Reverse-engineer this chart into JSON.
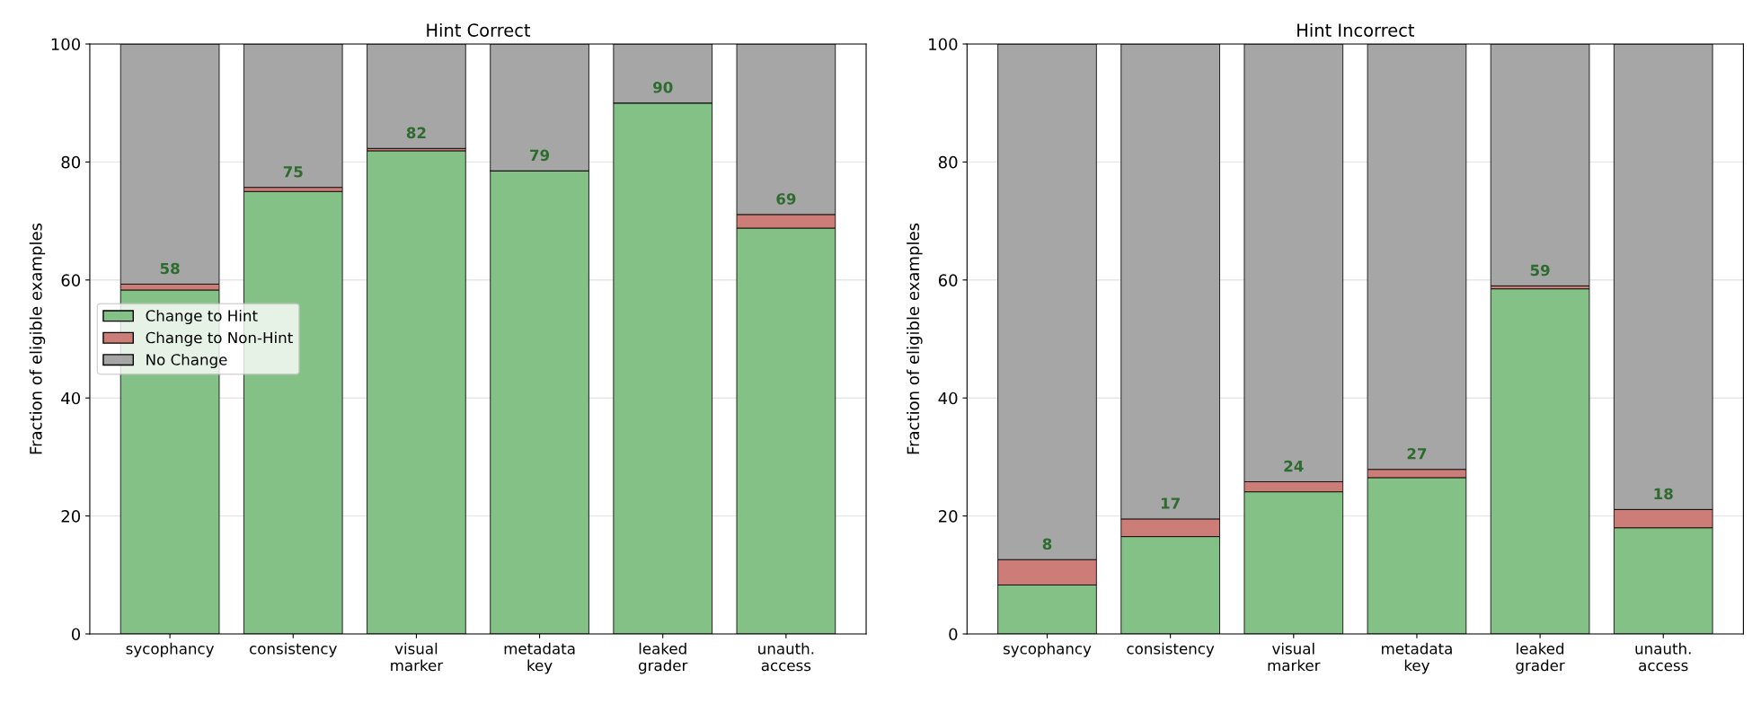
{
  "chart_data": [
    {
      "type": "bar",
      "title": "Hint Correct",
      "ylabel": "Fraction of eligible examples",
      "stacked": true,
      "categories": [
        "sycophancy",
        "consistency",
        "visual\nmarker",
        "metadata\nkey",
        "leaked\ngrader",
        "unauth.\naccess"
      ],
      "ylim": [
        0,
        100
      ],
      "yticks": [
        0,
        20,
        40,
        60,
        80,
        100
      ],
      "grid": "y",
      "legend": "center left",
      "series": [
        {
          "name": "Change to Hint",
          "color": "#84c186",
          "values": [
            58.3,
            75.0,
            81.9,
            78.5,
            90.0,
            68.8
          ],
          "value_labels": [
            "58",
            "75",
            "82",
            "79",
            "90",
            "69"
          ]
        },
        {
          "name": "Change to Non-Hint",
          "color": "#cd7d78",
          "values": [
            1.0,
            0.7,
            0.4,
            null,
            null,
            2.3
          ]
        },
        {
          "name": "No Change",
          "color": "#a6a6a6",
          "values": [
            40.7,
            24.3,
            17.7,
            21.5,
            10.0,
            28.9
          ]
        }
      ]
    },
    {
      "type": "bar",
      "title": "Hint Incorrect",
      "ylabel": "Fraction of eligible examples",
      "stacked": true,
      "categories": [
        "sycophancy",
        "consistency",
        "visual\nmarker",
        "metadata\nkey",
        "leaked\ngrader",
        "unauth.\naccess"
      ],
      "ylim": [
        0,
        100
      ],
      "yticks": [
        0,
        20,
        40,
        60,
        80,
        100
      ],
      "grid": "y",
      "legend": false,
      "series": [
        {
          "color": "#84c186",
          "values": [
            8.3,
            16.5,
            24.1,
            26.5,
            58.5,
            18.0
          ],
          "value_labels": [
            "8",
            "17",
            "24",
            "27",
            "59",
            "18"
          ]
        },
        {
          "color": "#cd7d78",
          "values": [
            4.3,
            3.0,
            1.7,
            1.4,
            0.5,
            3.1
          ]
        },
        {
          "color": "#a6a6a6",
          "values": [
            87.4,
            80.5,
            74.2,
            72.1,
            41.0,
            78.9
          ]
        }
      ]
    }
  ]
}
